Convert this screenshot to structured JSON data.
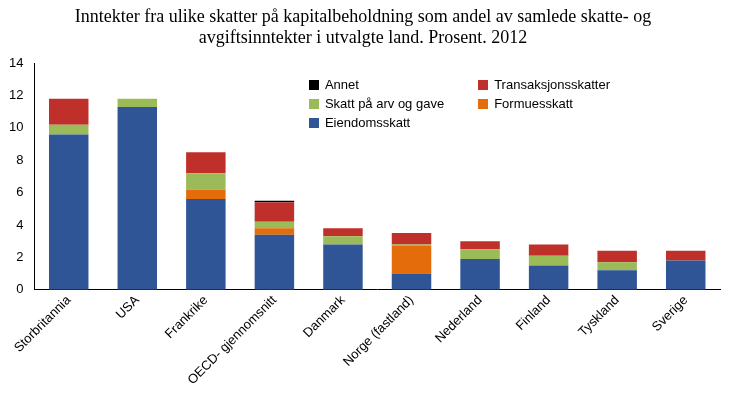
{
  "chart_data": {
    "type": "bar",
    "title": [
      "Inntekter fra ulike skatter på kapitalbeholdning som andel av samlede skatte- og",
      "avgiftsinntekter i utvalgte land. Prosent. 2012"
    ],
    "categories": [
      "Storbritannia",
      "USA",
      "Frankrike",
      "OECD- gjennomsnitt",
      "Danmark",
      "Norge (fastland)",
      "Nederland",
      "Finland",
      "Tyskland",
      "Sverige"
    ],
    "stacked": true,
    "grid": false,
    "legend": "upper right",
    "series": [
      {
        "name": "Eiendomsskatt",
        "color": "#2f5597",
        "values": [
          9.6,
          11.3,
          5.6,
          3.4,
          2.8,
          1.0,
          1.9,
          1.5,
          1.2,
          1.8
        ]
      },
      {
        "name": "Formuesskatt",
        "color": "#e46c0a",
        "values": [
          0,
          0,
          0.6,
          0.4,
          0,
          1.7,
          0,
          0,
          0,
          0
        ]
      },
      {
        "name": "Skatt på arv og gave",
        "color": "#9bbb59",
        "values": [
          0.6,
          0.5,
          1.0,
          0.4,
          0.5,
          0.1,
          0.6,
          0.6,
          0.5,
          0
        ]
      },
      {
        "name": "Transaksjonsskatter",
        "color": "#c0302b",
        "values": [
          1.6,
          0,
          1.3,
          1.2,
          0.5,
          0.7,
          0.5,
          0.7,
          0.7,
          0.6
        ]
      },
      {
        "name": "Annet",
        "color": "#000000",
        "values": [
          0,
          0,
          0,
          0.1,
          0,
          0,
          0,
          0,
          0,
          0
        ]
      }
    ],
    "ylim": [
      0,
      14
    ],
    "yticks": [
      0,
      2,
      4,
      6,
      8,
      10,
      12,
      14
    ]
  }
}
